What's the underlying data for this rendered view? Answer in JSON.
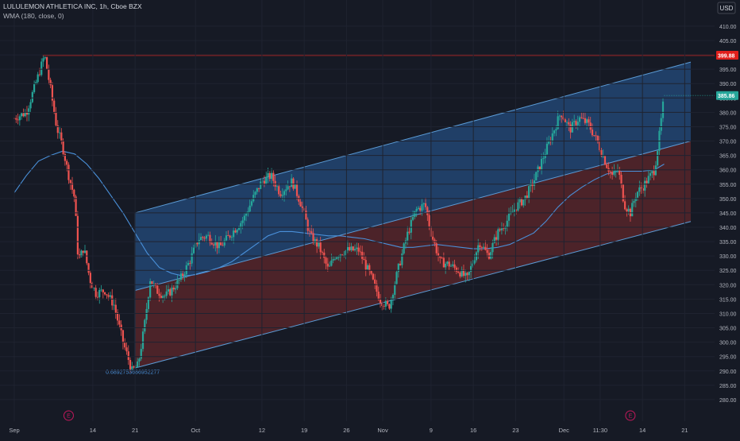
{
  "header": {
    "symbol_line": "LULULEMON ATHLETICA INC, 1h, Cboe BZX",
    "indicator_line": "WMA (180, close, 0)"
  },
  "currency": "USD",
  "colors": {
    "background": "#161a25",
    "up": "#26a69a",
    "down": "#ef5350",
    "wma": "#4a90d9",
    "resistance": "#e0201c",
    "channel_upper_fill": "#2a5f9e",
    "channel_lower_fill": "#7a2b2e",
    "channel_edge": "#5b9bd5",
    "earnings_marker": "#c2185b",
    "axis_text": "#b2b5be",
    "current_price_tag": "#26a69a"
  },
  "chart_data": {
    "type": "candlestick",
    "y_axis": {
      "range": [
        275,
        418
      ],
      "ticks": [
        280,
        285,
        290,
        295,
        300,
        305,
        310,
        315,
        320,
        325,
        330,
        335,
        340,
        345,
        350,
        355,
        360,
        365,
        370,
        375,
        380,
        385,
        390,
        395,
        400,
        405,
        410
      ]
    },
    "x_axis": {
      "range_days": [
        0,
        112
      ],
      "tick_labels": [
        {
          "label": "Sep",
          "day": 0
        },
        {
          "label": "14",
          "day": 13
        },
        {
          "label": "21",
          "day": 20
        },
        {
          "label": "Oct",
          "day": 30
        },
        {
          "label": "12",
          "day": 41
        },
        {
          "label": "19",
          "day": 48
        },
        {
          "label": "26",
          "day": 55
        },
        {
          "label": "Nov",
          "day": 61
        },
        {
          "label": "9",
          "day": 69
        },
        {
          "label": "16",
          "day": 76
        },
        {
          "label": "23",
          "day": 83
        },
        {
          "label": "Dec",
          "day": 91
        },
        {
          "label": "11:30",
          "day": 97
        },
        {
          "label": "14",
          "day": 104
        },
        {
          "label": "21",
          "day": 111
        }
      ]
    },
    "price_path": [
      [
        0,
        378
      ],
      [
        2,
        380
      ],
      [
        4,
        393
      ],
      [
        5,
        399.88
      ],
      [
        6,
        388
      ],
      [
        7,
        375
      ],
      [
        8,
        368
      ],
      [
        9,
        358
      ],
      [
        10,
        350
      ],
      [
        10.6,
        328
      ],
      [
        11.5,
        333
      ],
      [
        12.5,
        322
      ],
      [
        13.5,
        317
      ],
      [
        15,
        318
      ],
      [
        16.5,
        313
      ],
      [
        18,
        300
      ],
      [
        19.5,
        290
      ],
      [
        20.5,
        292
      ],
      [
        21.5,
        305
      ],
      [
        22.5,
        322
      ],
      [
        23.5,
        318
      ],
      [
        25,
        316
      ],
      [
        26,
        318
      ],
      [
        27.5,
        322
      ],
      [
        29,
        328
      ],
      [
        30.5,
        336
      ],
      [
        32,
        337
      ],
      [
        34,
        333
      ],
      [
        36,
        338
      ],
      [
        38,
        343
      ],
      [
        39.5,
        350
      ],
      [
        41,
        356
      ],
      [
        42.5,
        358
      ],
      [
        44,
        352
      ],
      [
        46,
        356
      ],
      [
        47.5,
        348
      ],
      [
        49,
        337
      ],
      [
        50.5,
        333
      ],
      [
        52,
        325
      ],
      [
        53,
        330
      ],
      [
        55,
        332
      ],
      [
        57,
        332
      ],
      [
        59,
        323
      ],
      [
        60.5,
        315
      ],
      [
        62,
        312
      ],
      [
        63.5,
        325
      ],
      [
        65,
        337
      ],
      [
        66.5,
        346
      ],
      [
        68,
        348
      ],
      [
        69,
        338
      ],
      [
        70.5,
        328
      ],
      [
        72,
        327
      ],
      [
        73.5,
        325
      ],
      [
        75,
        322
      ],
      [
        77,
        335
      ],
      [
        78.5,
        330
      ],
      [
        80,
        338
      ],
      [
        81.5,
        342
      ],
      [
        83,
        347
      ],
      [
        84.5,
        350
      ],
      [
        86,
        356
      ],
      [
        87.5,
        364
      ],
      [
        89,
        372
      ],
      [
        90.5,
        380
      ],
      [
        92,
        374
      ],
      [
        93.5,
        378
      ],
      [
        95,
        376
      ],
      [
        96.5,
        370
      ],
      [
        98,
        362
      ],
      [
        99,
        358
      ],
      [
        100,
        360
      ],
      [
        101,
        348
      ],
      [
        102,
        345
      ],
      [
        103,
        352
      ],
      [
        104,
        354
      ],
      [
        105,
        357
      ],
      [
        106,
        360
      ],
      [
        106.8,
        372
      ],
      [
        107.6,
        385.86
      ]
    ],
    "wma_180": [
      [
        0,
        352
      ],
      [
        2,
        358
      ],
      [
        4,
        363
      ],
      [
        6,
        365
      ],
      [
        8,
        366.5
      ],
      [
        10,
        365.5
      ],
      [
        12,
        362
      ],
      [
        14,
        357
      ],
      [
        16,
        351
      ],
      [
        18,
        345
      ],
      [
        20,
        338
      ],
      [
        22,
        331
      ],
      [
        24,
        326
      ],
      [
        26,
        324
      ],
      [
        28,
        323
      ],
      [
        30,
        323.5
      ],
      [
        32,
        324.5
      ],
      [
        34,
        326
      ],
      [
        36,
        328
      ],
      [
        38,
        331
      ],
      [
        40,
        334
      ],
      [
        42,
        337
      ],
      [
        44,
        338.5
      ],
      [
        46,
        338.5
      ],
      [
        48,
        338
      ],
      [
        50,
        337.5
      ],
      [
        52,
        337
      ],
      [
        54,
        337
      ],
      [
        56,
        336.5
      ],
      [
        58,
        336
      ],
      [
        60,
        335
      ],
      [
        62,
        334
      ],
      [
        64,
        333
      ],
      [
        66,
        333
      ],
      [
        68,
        333.5
      ],
      [
        70,
        334
      ],
      [
        72,
        333.5
      ],
      [
        74,
        333
      ],
      [
        76,
        332.5
      ],
      [
        78,
        332.5
      ],
      [
        80,
        333
      ],
      [
        82,
        334
      ],
      [
        84,
        336
      ],
      [
        86,
        338
      ],
      [
        88,
        342
      ],
      [
        90,
        347
      ],
      [
        92,
        351
      ],
      [
        94,
        354
      ],
      [
        96,
        356.5
      ],
      [
        98,
        358.5
      ],
      [
        100,
        359.5
      ],
      [
        102,
        359.5
      ],
      [
        104,
        359.5
      ],
      [
        106,
        360
      ],
      [
        107.6,
        362
      ]
    ],
    "resistance_level": {
      "value": 399.88,
      "label": "399.88",
      "start_day": 4.7
    },
    "current_price": {
      "value": 385.86,
      "label": "385.86"
    },
    "regression_channel": {
      "start_day": 20,
      "end_day": 112,
      "upper": [
        345,
        397.5
      ],
      "middle": [
        318,
        370
      ],
      "lower": [
        291,
        342
      ]
    },
    "annotation": {
      "text": "0.6892753686952277",
      "day": 20,
      "price": 289.5
    },
    "earnings_markers": [
      {
        "label": "E",
        "day": 9
      },
      {
        "label": "E",
        "day": 102
      }
    ]
  }
}
